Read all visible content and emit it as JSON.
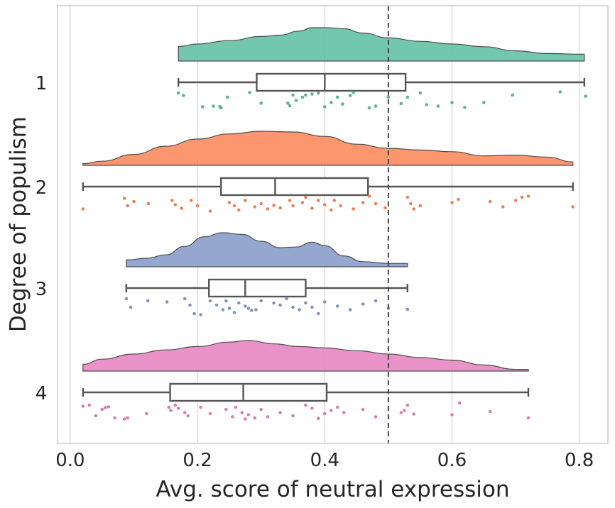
{
  "chart_data": {
    "type": "raincloud",
    "title": "",
    "xlabel": "Avg. score of neutral expression",
    "ylabel": "Degree of populism",
    "xlim": [
      -0.02,
      0.845
    ],
    "xticks": [
      0.0,
      0.2,
      0.4,
      0.6,
      0.8
    ],
    "xtick_labels": [
      "0.0",
      "0.2",
      "0.4",
      "0.6",
      "0.8"
    ],
    "grid": "vertical",
    "reference_line": {
      "x": 0.5,
      "style": "dashed"
    },
    "groups": [
      {
        "label": "1",
        "color": "#66c2a5",
        "box": {
          "min": 0.17,
          "q1": 0.293,
          "median": 0.4,
          "q3": 0.527,
          "max": 0.808
        },
        "density": [
          [
            0.17,
            0.43
          ],
          [
            0.2,
            0.5
          ],
          [
            0.25,
            0.6
          ],
          [
            0.3,
            0.72
          ],
          [
            0.33,
            0.76
          ],
          [
            0.36,
            0.88
          ],
          [
            0.38,
            0.98
          ],
          [
            0.4,
            0.98
          ],
          [
            0.43,
            0.95
          ],
          [
            0.46,
            0.82
          ],
          [
            0.5,
            0.68
          ],
          [
            0.55,
            0.58
          ],
          [
            0.6,
            0.5
          ],
          [
            0.65,
            0.42
          ],
          [
            0.7,
            0.3
          ],
          [
            0.75,
            0.22
          ],
          [
            0.8,
            0.2
          ],
          [
            0.808,
            0.2
          ]
        ],
        "points": [
          [
            0.17,
            0.1
          ],
          [
            0.178,
            0.22
          ],
          [
            0.208,
            0.75
          ],
          [
            0.225,
            0.72
          ],
          [
            0.235,
            0.74
          ],
          [
            0.237,
            0.8
          ],
          [
            0.247,
            0.3
          ],
          [
            0.282,
            0.08
          ],
          [
            0.3,
            0.58
          ],
          [
            0.342,
            0.58
          ],
          [
            0.345,
            0.7
          ],
          [
            0.35,
            0.2
          ],
          [
            0.355,
            0.45
          ],
          [
            0.365,
            0.3
          ],
          [
            0.37,
            0.2
          ],
          [
            0.38,
            0.15
          ],
          [
            0.39,
            0.1
          ],
          [
            0.4,
            0.75
          ],
          [
            0.41,
            0.55
          ],
          [
            0.42,
            0.3
          ],
          [
            0.428,
            0.62
          ],
          [
            0.44,
            0.22
          ],
          [
            0.445,
            0.08
          ],
          [
            0.47,
            0.8
          ],
          [
            0.48,
            0.72
          ],
          [
            0.5,
            0.3
          ],
          [
            0.52,
            0.6
          ],
          [
            0.53,
            0.3
          ],
          [
            0.55,
            0.1
          ],
          [
            0.56,
            0.65
          ],
          [
            0.578,
            0.72
          ],
          [
            0.6,
            0.55
          ],
          [
            0.62,
            0.78
          ],
          [
            0.65,
            0.55
          ],
          [
            0.695,
            0.2
          ],
          [
            0.77,
            0.05
          ],
          [
            0.81,
            0.25
          ]
        ]
      },
      {
        "label": "2",
        "color": "#fc8d62",
        "box": {
          "min": 0.02,
          "q1": 0.237,
          "median": 0.322,
          "q3": 0.468,
          "max": 0.79
        },
        "density": [
          [
            0.02,
            0.05
          ],
          [
            0.05,
            0.12
          ],
          [
            0.1,
            0.32
          ],
          [
            0.15,
            0.56
          ],
          [
            0.2,
            0.77
          ],
          [
            0.25,
            0.92
          ],
          [
            0.3,
            1.0
          ],
          [
            0.35,
            0.98
          ],
          [
            0.4,
            0.85
          ],
          [
            0.45,
            0.62
          ],
          [
            0.5,
            0.5
          ],
          [
            0.55,
            0.45
          ],
          [
            0.6,
            0.4
          ],
          [
            0.65,
            0.28
          ],
          [
            0.7,
            0.3
          ],
          [
            0.75,
            0.24
          ],
          [
            0.79,
            0.1
          ]
        ],
        "points": [
          [
            0.02,
            0.65
          ],
          [
            0.085,
            0.15
          ],
          [
            0.09,
            0.5
          ],
          [
            0.1,
            0.3
          ],
          [
            0.123,
            0.4
          ],
          [
            0.16,
            0.25
          ],
          [
            0.165,
            0.45
          ],
          [
            0.175,
            0.62
          ],
          [
            0.19,
            0.25
          ],
          [
            0.2,
            0.5
          ],
          [
            0.22,
            0.75
          ],
          [
            0.25,
            0.35
          ],
          [
            0.258,
            0.5
          ],
          [
            0.265,
            0.7
          ],
          [
            0.275,
            0.25
          ],
          [
            0.29,
            0.55
          ],
          [
            0.3,
            0.4
          ],
          [
            0.31,
            0.65
          ],
          [
            0.32,
            0.48
          ],
          [
            0.33,
            0.6
          ],
          [
            0.345,
            0.25
          ],
          [
            0.35,
            0.5
          ],
          [
            0.365,
            0.35
          ],
          [
            0.37,
            0.1
          ],
          [
            0.38,
            0.62
          ],
          [
            0.39,
            0.25
          ],
          [
            0.4,
            0.45
          ],
          [
            0.41,
            0.7
          ],
          [
            0.415,
            0.25
          ],
          [
            0.425,
            0.5
          ],
          [
            0.445,
            0.65
          ],
          [
            0.46,
            0.35
          ],
          [
            0.47,
            0.05
          ],
          [
            0.48,
            0.4
          ],
          [
            0.495,
            0.6
          ],
          [
            0.53,
            0.1
          ],
          [
            0.535,
            0.4
          ],
          [
            0.54,
            0.65
          ],
          [
            0.55,
            0.5
          ],
          [
            0.6,
            0.35
          ],
          [
            0.61,
            0.2
          ],
          [
            0.66,
            0.3
          ],
          [
            0.68,
            0.55
          ],
          [
            0.7,
            0.25
          ],
          [
            0.71,
            0.1
          ],
          [
            0.72,
            0.05
          ],
          [
            0.79,
            0.55
          ]
        ]
      },
      {
        "label": "3",
        "color": "#8da0cb",
        "box": {
          "min": 0.088,
          "q1": 0.218,
          "median": 0.275,
          "q3": 0.37,
          "max": 0.53
        },
        "density": [
          [
            0.088,
            0.2
          ],
          [
            0.12,
            0.25
          ],
          [
            0.15,
            0.35
          ],
          [
            0.18,
            0.6
          ],
          [
            0.21,
            0.88
          ],
          [
            0.24,
            1.0
          ],
          [
            0.27,
            0.95
          ],
          [
            0.3,
            0.75
          ],
          [
            0.33,
            0.56
          ],
          [
            0.355,
            0.58
          ],
          [
            0.38,
            0.72
          ],
          [
            0.4,
            0.62
          ],
          [
            0.43,
            0.32
          ],
          [
            0.46,
            0.15
          ],
          [
            0.5,
            0.1
          ],
          [
            0.53,
            0.1
          ]
        ],
        "points": [
          [
            0.088,
            0.1
          ],
          [
            0.095,
            0.5
          ],
          [
            0.122,
            0.2
          ],
          [
            0.152,
            0.25
          ],
          [
            0.18,
            0.1
          ],
          [
            0.188,
            0.4
          ],
          [
            0.195,
            0.8
          ],
          [
            0.205,
            0.85
          ],
          [
            0.22,
            0.2
          ],
          [
            0.23,
            0.4
          ],
          [
            0.24,
            0.62
          ],
          [
            0.245,
            0.2
          ],
          [
            0.25,
            0.55
          ],
          [
            0.258,
            0.75
          ],
          [
            0.265,
            0.3
          ],
          [
            0.275,
            0.45
          ],
          [
            0.28,
            0.55
          ],
          [
            0.285,
            0.65
          ],
          [
            0.292,
            0.62
          ],
          [
            0.3,
            0.2
          ],
          [
            0.32,
            0.3
          ],
          [
            0.33,
            0.4
          ],
          [
            0.34,
            0.1
          ],
          [
            0.35,
            0.5
          ],
          [
            0.36,
            0.62
          ],
          [
            0.37,
            0.3
          ],
          [
            0.38,
            0.5
          ],
          [
            0.39,
            0.8
          ],
          [
            0.4,
            0.25
          ],
          [
            0.42,
            0.45
          ],
          [
            0.44,
            0.62
          ],
          [
            0.46,
            0.35
          ],
          [
            0.48,
            0.2
          ],
          [
            0.5,
            0.55
          ],
          [
            0.53,
            0.6
          ]
        ]
      },
      {
        "label": "4",
        "color": "#e78ac3",
        "box": {
          "min": 0.02,
          "q1": 0.157,
          "median": 0.272,
          "q3": 0.403,
          "max": 0.72
        },
        "density": [
          [
            0.02,
            0.2
          ],
          [
            0.05,
            0.35
          ],
          [
            0.1,
            0.5
          ],
          [
            0.15,
            0.62
          ],
          [
            0.2,
            0.72
          ],
          [
            0.25,
            0.85
          ],
          [
            0.28,
            0.9
          ],
          [
            0.32,
            0.8
          ],
          [
            0.36,
            0.72
          ],
          [
            0.4,
            0.68
          ],
          [
            0.45,
            0.6
          ],
          [
            0.5,
            0.5
          ],
          [
            0.55,
            0.4
          ],
          [
            0.6,
            0.32
          ],
          [
            0.65,
            0.18
          ],
          [
            0.7,
            0.05
          ],
          [
            0.72,
            0.05
          ]
        ],
        "points": [
          [
            0.02,
            0.25
          ],
          [
            0.03,
            0.2
          ],
          [
            0.04,
            0.7
          ],
          [
            0.05,
            0.4
          ],
          [
            0.055,
            0.32
          ],
          [
            0.06,
            0.28
          ],
          [
            0.07,
            0.8
          ],
          [
            0.085,
            0.85
          ],
          [
            0.09,
            0.8
          ],
          [
            0.12,
            0.6
          ],
          [
            0.155,
            0.3
          ],
          [
            0.158,
            0.45
          ],
          [
            0.165,
            0.2
          ],
          [
            0.17,
            0.35
          ],
          [
            0.18,
            0.55
          ],
          [
            0.185,
            0.7
          ],
          [
            0.205,
            0.3
          ],
          [
            0.22,
            0.6
          ],
          [
            0.245,
            0.4
          ],
          [
            0.255,
            0.75
          ],
          [
            0.26,
            0.3
          ],
          [
            0.27,
            0.55
          ],
          [
            0.275,
            0.85
          ],
          [
            0.28,
            0.65
          ],
          [
            0.29,
            0.8
          ],
          [
            0.3,
            0.4
          ],
          [
            0.31,
            0.75
          ],
          [
            0.33,
            0.55
          ],
          [
            0.35,
            0.7
          ],
          [
            0.37,
            0.2
          ],
          [
            0.38,
            0.35
          ],
          [
            0.39,
            0.82
          ],
          [
            0.4,
            0.6
          ],
          [
            0.41,
            0.45
          ],
          [
            0.42,
            0.3
          ],
          [
            0.43,
            0.55
          ],
          [
            0.46,
            0.4
          ],
          [
            0.48,
            0.75
          ],
          [
            0.52,
            0.55
          ],
          [
            0.525,
            0.45
          ],
          [
            0.53,
            0.2
          ],
          [
            0.54,
            0.62
          ],
          [
            0.6,
            0.65
          ],
          [
            0.612,
            0.1
          ],
          [
            0.66,
            0.5
          ],
          [
            0.72,
            0.8
          ]
        ]
      }
    ]
  }
}
